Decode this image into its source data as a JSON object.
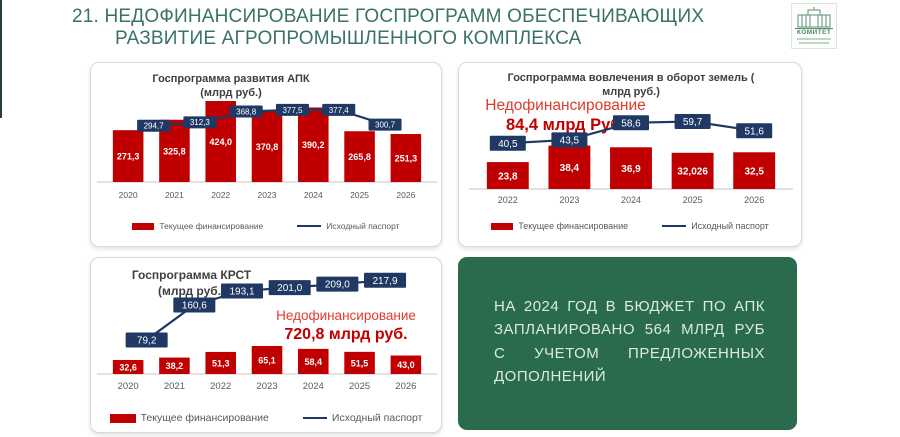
{
  "slide": {
    "title_line1": "21. НЕДОФИНАНСИРОВАНИЕ ГОСПРОГРАММ ОБЕСПЕЧИВАЮЩИХ",
    "title_line2": "РАЗВИТИЕ АГРОПРОМЫШЛЕННОГО КОМПЛЕКСА"
  },
  "logo": {
    "label": "КОМИТЕТ"
  },
  "colors": {
    "title_teal": "#3a7168",
    "bar_red": "#c00000",
    "line_navy": "#1f3864",
    "annotation_red": "#e23b2c",
    "annotation_dark_red": "#c00000",
    "info_box_green": "#2a6a4d",
    "axis_gray": "#c6c6c6",
    "tick_gray": "#595959"
  },
  "legend": {
    "current": "Текущее финансирование",
    "passport": "Исходный паспорт"
  },
  "annotations": {
    "lands": {
      "line1": "Недофинансирование",
      "line2": "84,4  млрд Руб."
    },
    "krst": {
      "line1": "Недофинансирование",
      "line2": "720,8 млрд руб."
    }
  },
  "info_box": {
    "text": "НА 2024 ГОД В БЮДЖЕТ ПО АПК ЗАПЛАНИРОВАНО 564 МЛРД РУБ С УЧЕТОМ ПРЕДЛОЖЕННЫХ ДОПОЛНЕНИЙ"
  },
  "chart_data": [
    {
      "type": "bar",
      "title": "Госпрограмма развития АПК",
      "subtitle": "(млрд руб.)",
      "categories": [
        "2020",
        "2021",
        "2022",
        "2023",
        "2024",
        "2025",
        "2026"
      ],
      "series": [
        {
          "name": "Текущее финансирование",
          "type": "bar",
          "values": [
            271.3,
            325.8,
            424.0,
            370.8,
            390.2,
            265.8,
            251.3
          ],
          "labels": [
            "271,3",
            "325,8",
            "424,0",
            "370,8",
            "390,2",
            "265,8",
            "251,3"
          ]
        },
        {
          "name": "Исходный паспорт",
          "type": "line",
          "values": [
            294.7,
            312.3,
            368.8,
            377.5,
            377.4,
            300.7
          ],
          "labels": [
            "294,7",
            "312,3",
            "368,8",
            "377,5",
            "377,4",
            "300,7"
          ]
        }
      ],
      "ylabel": "млрд руб.",
      "grid": false,
      "legend_position": "bottom"
    },
    {
      "type": "bar",
      "title": "Госпрограмма вовлечения в оборот земель (",
      "subtitle": "млрд руб.)",
      "categories": [
        "2022",
        "2023",
        "2024",
        "2025",
        "2026"
      ],
      "series": [
        {
          "name": "Текущее финансирование",
          "type": "bar",
          "values": [
            23.8,
            38.4,
            36.9,
            32.026,
            32.5
          ],
          "labels": [
            "23,8",
            "38,4",
            "36,9",
            "32,026",
            "32,5"
          ]
        },
        {
          "name": "Исходный паспорт",
          "type": "line",
          "values": [
            40.5,
            43.5,
            58.6,
            59.7,
            51.6
          ],
          "labels": [
            "40,5",
            "43,5",
            "58,6",
            "59,7",
            "51,6"
          ]
        }
      ],
      "annotation": "Недофинансирование 84,4 млрд Руб.",
      "ylabel": "млрд руб.",
      "grid": false,
      "legend_position": "bottom"
    },
    {
      "type": "bar",
      "title": "Госпрограмма КРСТ",
      "subtitle": "(млрд руб.)",
      "categories": [
        "2020",
        "2021",
        "2022",
        "2023",
        "2024",
        "2025",
        "2026"
      ],
      "series": [
        {
          "name": "Текущее финансирование",
          "type": "bar",
          "values": [
            32.6,
            38.2,
            51.3,
            65.1,
            58.4,
            51.5,
            43.0
          ],
          "labels": [
            "32,6",
            "38,2",
            "51,3",
            "65,1",
            "58,4",
            "51,5",
            "43,0"
          ]
        },
        {
          "name": "Исходный паспорт",
          "type": "line",
          "values": [
            79.2,
            160.6,
            193.1,
            201.0,
            209.0,
            217.9
          ],
          "labels": [
            "79,2",
            "160,6",
            "193,1",
            "201,0",
            "209,0",
            "217,9"
          ]
        }
      ],
      "annotation": "Недофинансирование 720,8 млрд руб.",
      "ylabel": "млрд руб.",
      "grid": false,
      "legend_position": "bottom"
    }
  ]
}
